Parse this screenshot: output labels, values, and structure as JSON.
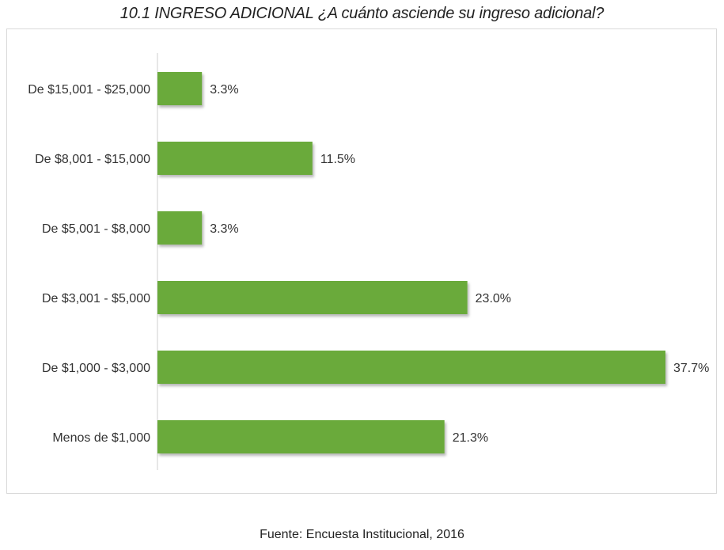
{
  "title": "10.1 INGRESO ADICIONAL ¿A cuánto asciende su ingreso adicional?",
  "footer": "Fuente: Encuesta Institucional, 2016",
  "chart_data": {
    "type": "bar",
    "orientation": "horizontal",
    "categories": [
      "De $15,001 - $25,000",
      "De $8,001 - $15,000",
      "De $5,001 - $8,000",
      "De $3,001 - $5,000",
      "De $1,000 - $3,000",
      "Menos de $1,000"
    ],
    "values": [
      3.3,
      11.5,
      3.3,
      23.0,
      37.7,
      21.3
    ],
    "value_labels": [
      "3.3%",
      "11.5%",
      "3.3%",
      "23.0%",
      "37.7%",
      "21.3%"
    ],
    "unit": "%",
    "xlim": [
      0,
      37.7
    ],
    "grid": false,
    "legend": "none",
    "bar_color": "#6aaa3a"
  }
}
